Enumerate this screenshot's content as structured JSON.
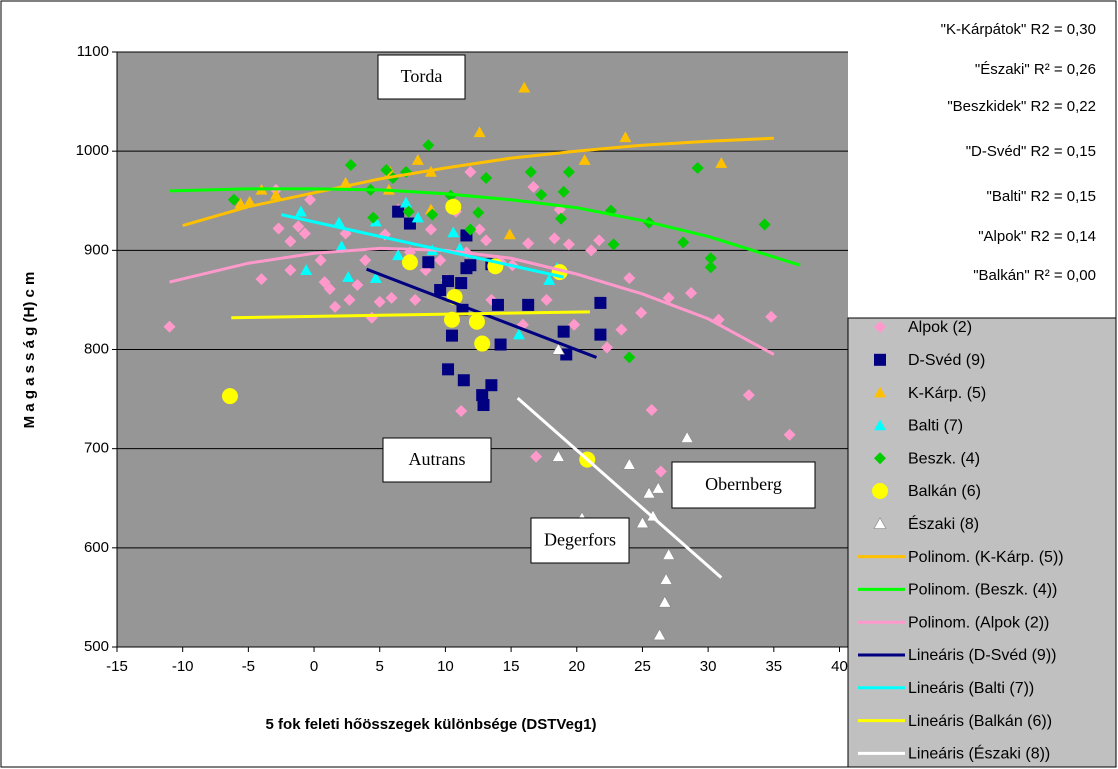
{
  "chart_data": {
    "type": "scatter",
    "x_label": "5 fok feleti hőösszegek különbsége (DSTVeg1)",
    "y_label": "M a g a s s á g (H) c m",
    "xlim": [
      -15,
      40
    ],
    "xticks": [
      -15,
      -10,
      -5,
      0,
      5,
      10,
      15,
      20,
      25,
      30,
      35,
      40
    ],
    "ylim": [
      500,
      1100
    ],
    "yticks": [
      500,
      600,
      700,
      800,
      900,
      1000,
      1100
    ],
    "grid": true,
    "legend": "right",
    "r2_labels": [
      "\"K-Kárpátok\" R2 = 0,30",
      "\"Északi\" R² = 0,26",
      "\"Beszkidek\" R2 = 0,22",
      "\"D-Svéd\" R2 = 0,15",
      "\"Balti\" R2 = 0,15",
      "\"Alpok\"  R2 = 0,14",
      "\"Balkán\" R² = 0,00"
    ],
    "site_labels": [
      "Torda",
      "Autrans",
      "Obernberg",
      "Degerfors"
    ],
    "series": [
      {
        "name": "Alpok (2)",
        "color": "#ff99cc",
        "marker": "diamond",
        "x": [
          -11.0,
          -4.0,
          -2.7,
          -1.8,
          -1.2,
          -0.7,
          -0.3,
          0.5,
          0.8,
          1.2,
          1.6,
          2.4,
          2.7,
          3.3,
          3.9,
          4.4,
          5.0,
          5.4,
          5.9,
          6.4,
          7.3,
          7.7,
          8.5,
          8.9,
          9.6,
          10.1,
          10.8,
          11.2,
          11.6,
          11.9,
          12.6,
          13.1,
          13.5,
          14.2,
          15.1,
          15.9,
          16.3,
          16.7,
          16.9,
          17.7,
          18.3,
          18.7,
          19.4,
          19.8,
          21.1,
          21.7,
          23.4,
          24.0,
          24.9,
          26.4,
          27.0,
          28.7,
          30.8,
          33.1,
          34.8,
          36.2,
          22.3,
          25.7,
          -2.9,
          -1.8
        ],
        "values": [
          823,
          871,
          922,
          909,
          924,
          917,
          951,
          890,
          868,
          861,
          843,
          917,
          850,
          865,
          890,
          832,
          848,
          916,
          852,
          941,
          898,
          850,
          880,
          921,
          890,
          870,
          939,
          738,
          898,
          979,
          921,
          910,
          850,
          888,
          885,
          825,
          907,
          964,
          692,
          850,
          912,
          941,
          906,
          825,
          900,
          910,
          820,
          872,
          837,
          677,
          852,
          857,
          830,
          754,
          833,
          714,
          802,
          739,
          961,
          880
        ]
      },
      {
        "name": "D-Svéd (9)",
        "color": "#000080",
        "marker": "square",
        "x": [
          6.4,
          7.3,
          8.7,
          9.6,
          10.2,
          10.5,
          10.2,
          11.4,
          11.6,
          11.9,
          11.6,
          12.8,
          12.9,
          13.5,
          11.3,
          14.0,
          14.2,
          16.3,
          19.0,
          19.2,
          21.8,
          21.8,
          13.5,
          11.2
        ],
        "values": [
          939,
          927,
          888,
          860,
          869,
          814,
          780,
          769,
          882,
          885,
          915,
          754,
          744,
          764,
          840,
          845,
          805,
          845,
          818,
          795,
          847,
          815,
          886,
          867
        ]
      },
      {
        "name": "K-Kárp. (5)",
        "color": "#ffc000",
        "marker": "triangle",
        "x": [
          -5.6,
          -4.9,
          -4.0,
          -2.9,
          2.4,
          5.7,
          5.8,
          7.9,
          8.9,
          8.9,
          12.6,
          14.9,
          16.0,
          20.6,
          23.7,
          31.0
        ],
        "values": [
          947,
          949,
          961,
          956,
          968,
          961,
          979,
          991,
          979,
          941,
          1019,
          916,
          1064,
          991,
          1014,
          988
        ]
      },
      {
        "name": "Balti (7)",
        "color": "#00ffff",
        "marker": "triangle",
        "x": [
          -1.0,
          -0.6,
          1.9,
          2.6,
          4.7,
          6.4,
          7.0,
          7.9,
          9.0,
          10.6,
          11.1,
          17.9,
          18.5,
          15.6,
          2.1,
          4.7
        ],
        "values": [
          939,
          880,
          928,
          873,
          929,
          895,
          948,
          933,
          900,
          918,
          902,
          870,
          882,
          815,
          904,
          872
        ]
      },
      {
        "name": "Beszk. (4)",
        "color": "#00cc00",
        "marker": "diamond",
        "x": [
          -6.1,
          2.8,
          4.3,
          5.5,
          6.0,
          7.0,
          8.7,
          9.0,
          10.4,
          11.9,
          12.5,
          13.1,
          16.5,
          17.3,
          19.0,
          19.4,
          18.8,
          22.6,
          22.8,
          24.0,
          25.5,
          28.1,
          29.2,
          30.2,
          30.2,
          34.3,
          4.5,
          7.2
        ],
        "values": [
          951,
          986,
          961,
          981,
          973,
          979,
          1006,
          936,
          955,
          921,
          938,
          973,
          979,
          956,
          959,
          979,
          932,
          940,
          906,
          792,
          928,
          908,
          983,
          892,
          883,
          926,
          933,
          939
        ]
      },
      {
        "name": "Balkán (6)",
        "color": "#ffff00",
        "marker": "circle",
        "x": [
          -6.4,
          7.3,
          10.6,
          10.7,
          10.5,
          12.4,
          13.8,
          12.8,
          18.7,
          20.8
        ],
        "values": [
          753,
          888,
          944,
          853,
          830,
          828,
          884,
          806,
          878,
          689
        ]
      },
      {
        "name": "Északi (8)",
        "color": "#ffffff",
        "marker": "triangle",
        "x": [
          18.6,
          18.6,
          20.4,
          24.0,
          25.0,
          25.8,
          25.5,
          26.2,
          27.0,
          28.4,
          26.8,
          26.7,
          26.3
        ],
        "values": [
          800,
          692,
          630,
          684,
          625,
          632,
          655,
          660,
          593,
          711,
          568,
          545,
          512
        ]
      },
      {
        "name": "Polinom. (K-Kárp. (5))",
        "color": "#ffc000",
        "kind": "line",
        "x": [
          -10,
          -5,
          0,
          5,
          10,
          15,
          20,
          25,
          30,
          35
        ],
        "values": [
          925,
          944,
          958,
          972,
          983,
          993,
          1000,
          1006,
          1010,
          1013
        ]
      },
      {
        "name": "Polinom. (Beszk. (4))",
        "color": "#00ff00",
        "kind": "line",
        "x": [
          -11,
          -5,
          0,
          5,
          10,
          15,
          20,
          25,
          30,
          37
        ],
        "values": [
          960,
          962,
          962,
          961,
          957,
          951,
          943,
          930,
          914,
          885
        ]
      },
      {
        "name": "Polinom. (Alpok (2))",
        "color": "#ff99cc",
        "kind": "line",
        "x": [
          -11,
          -5,
          0,
          5,
          10,
          15,
          20,
          25,
          30,
          35
        ],
        "values": [
          868,
          887,
          897,
          902,
          900,
          892,
          876,
          856,
          831,
          795
        ]
      },
      {
        "name": "Lineáris (D-Svéd (9))",
        "color": "#000080",
        "kind": "line",
        "x": [
          4,
          21.5
        ],
        "values": [
          881,
          792
        ]
      },
      {
        "name": "Lineáris (Balti (7))",
        "color": "#00ffff",
        "kind": "line",
        "x": [
          -2.5,
          19
        ],
        "values": [
          936,
          873
        ]
      },
      {
        "name": "Lineáris (Balkán (6))",
        "color": "#ffff00",
        "kind": "line",
        "x": [
          -6.3,
          21
        ],
        "values": [
          832,
          838
        ]
      },
      {
        "name": "Lineáris (Északi (8))",
        "color": "#ffffff",
        "kind": "line",
        "x": [
          15.5,
          31
        ],
        "values": [
          751,
          570
        ]
      }
    ]
  }
}
